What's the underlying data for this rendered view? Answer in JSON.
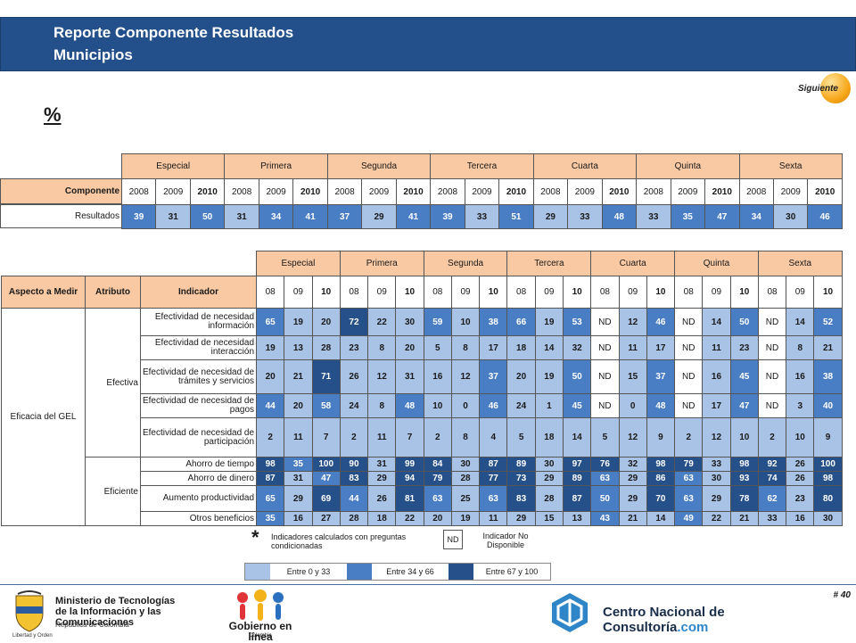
{
  "header": {
    "title": "Reporte Componente  Resultados",
    "subtitle": "Municipios"
  },
  "nav": {
    "next_label": "Siguiente"
  },
  "percent_sign": "%",
  "summary": {
    "groups": [
      "Especial",
      "Primera",
      "Segunda",
      "Tercera",
      "Cuarta",
      "Quinta",
      "Sexta"
    ],
    "years": [
      "2008",
      "2009",
      "2010"
    ],
    "component_label": "Componente",
    "row_label": "Resultados",
    "values": [
      39,
      31,
      50,
      31,
      34,
      41,
      37,
      29,
      41,
      39,
      33,
      51,
      29,
      33,
      48,
      33,
      35,
      47,
      34,
      30,
      46
    ]
  },
  "detail": {
    "groups": [
      "Especial",
      "Primera",
      "Segunda",
      "Tercera",
      "Cuarta",
      "Quinta",
      "Sexta"
    ],
    "years": [
      "08",
      "09",
      "10"
    ],
    "col_aspect": "Aspecto a Medir",
    "col_attr": "Atributo",
    "col_ind": "Indicador",
    "aspect": "Eficacia del GEL",
    "attributes": [
      "Efectiva",
      "Eficiente"
    ],
    "rows": [
      {
        "attr": 0,
        "label": "Efectividad de necesidad información",
        "values": [
          "65",
          "19",
          "20",
          "72",
          "22",
          "30",
          "59",
          "10",
          "38",
          "66",
          "19",
          "53",
          "ND",
          "12",
          "46",
          "ND",
          "14",
          "50",
          "ND",
          "14",
          "52"
        ]
      },
      {
        "attr": 0,
        "label": "Efectividad de necesidad interacción",
        "values": [
          "19",
          "13",
          "28",
          "23",
          "8",
          "20",
          "5",
          "8",
          "17",
          "18",
          "14",
          "32",
          "ND",
          "11",
          "17",
          "ND",
          "11",
          "23",
          "ND",
          "8",
          "21"
        ]
      },
      {
        "attr": 0,
        "label": "Efectividad de necesidad de trámites y servicios",
        "values": [
          "20",
          "21",
          "71",
          "26",
          "12",
          "31",
          "16",
          "12",
          "37",
          "20",
          "19",
          "50",
          "ND",
          "15",
          "37",
          "ND",
          "16",
          "45",
          "ND",
          "16",
          "38"
        ]
      },
      {
        "attr": 0,
        "label": "Efectividad de necesidad de pagos",
        "values": [
          "44",
          "20",
          "58",
          "24",
          "8",
          "48",
          "10",
          "0",
          "46",
          "24",
          "1",
          "45",
          "ND",
          "0",
          "48",
          "ND",
          "17",
          "47",
          "ND",
          "3",
          "40"
        ]
      },
      {
        "attr": 0,
        "label": "Efectividad de necesidad de participación",
        "values": [
          "2",
          "11",
          "7",
          "2",
          "11",
          "7",
          "2",
          "8",
          "4",
          "5",
          "18",
          "14",
          "5",
          "12",
          "9",
          "2",
          "12",
          "10",
          "2",
          "10",
          "9"
        ]
      },
      {
        "attr": 1,
        "label": "Ahorro de tiempo",
        "values": [
          "98",
          "35",
          "100",
          "90",
          "31",
          "99",
          "84",
          "30",
          "87",
          "89",
          "30",
          "97",
          "76",
          "32",
          "98",
          "79",
          "33",
          "98",
          "92",
          "26",
          "100"
        ]
      },
      {
        "attr": 1,
        "label": "Ahorro de dinero",
        "values": [
          "87",
          "31",
          "47",
          "83",
          "29",
          "94",
          "79",
          "28",
          "77",
          "73",
          "29",
          "89",
          "63",
          "29",
          "86",
          "63",
          "30",
          "93",
          "74",
          "26",
          "98"
        ]
      },
      {
        "attr": 1,
        "label": "Aumento productividad",
        "values": [
          "65",
          "29",
          "69",
          "44",
          "26",
          "81",
          "63",
          "25",
          "63",
          "83",
          "28",
          "87",
          "50",
          "29",
          "70",
          "63",
          "29",
          "78",
          "62",
          "23",
          "80"
        ]
      },
      {
        "attr": 1,
        "label": "Otros beneficios",
        "values": [
          "35",
          "16",
          "27",
          "28",
          "18",
          "22",
          "20",
          "19",
          "11",
          "29",
          "15",
          "13",
          "43",
          "21",
          "14",
          "49",
          "22",
          "21",
          "33",
          "16",
          "30"
        ]
      }
    ]
  },
  "legend": {
    "star": "*",
    "note_conditional": "Indicadores calculados con preguntas condicionadas",
    "nd_box": "ND",
    "nd_label": "Indicador No Disponible",
    "ranges": [
      {
        "label": "Entre 0 y 33",
        "color": "#a9c3e6"
      },
      {
        "label": "Entre 34 y 66",
        "color": "#4a7ec4"
      },
      {
        "label": "Entre 67 y 100",
        "color": "#26508a"
      }
    ]
  },
  "footer": {
    "page_number": "# 40",
    "ministry": "Ministerio de Tecnologías de la Información y las Comunicaciones",
    "ministry_sub": "República de Colombia",
    "shield_caption": "Libertad y Orden",
    "gel_name": "Gobierno en línea",
    "gel_sub": "Colombia",
    "cnc_name": "Centro Nacional de Consultoría",
    "cnc_suffix": ".com"
  }
}
